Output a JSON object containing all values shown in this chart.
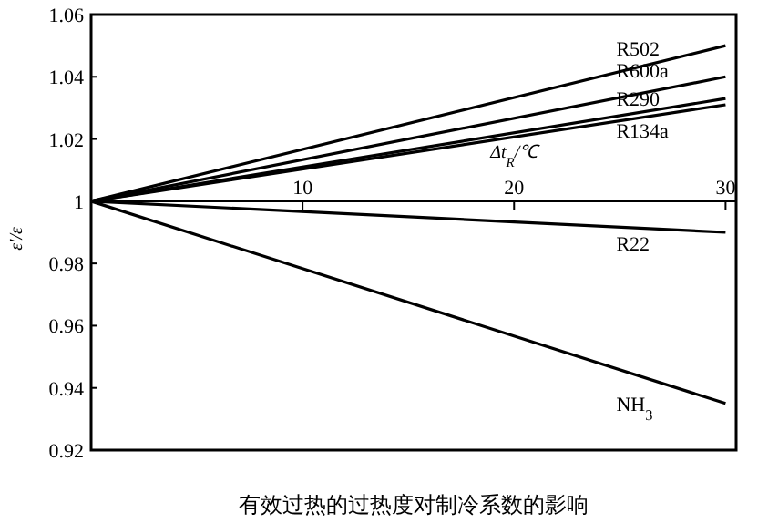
{
  "chart_data": {
    "type": "line",
    "title": "有效过热的过热度对制冷系数的影响",
    "xlabel": "Δt$_{R}$/℃",
    "ylabel": "ε'/ε",
    "x": [
      0,
      30
    ],
    "xlim": [
      0,
      30.5
    ],
    "xticks": [
      10,
      20,
      30
    ],
    "ylim": [
      0.92,
      1.06
    ],
    "yticks": [
      0.92,
      0.94,
      0.96,
      0.98,
      {
        "value": 1,
        "label": "1"
      },
      1.02,
      1.04,
      1.06
    ],
    "legend": false,
    "marker": "none",
    "line_style": "solid",
    "series": [
      {
        "name": "R502",
        "color": "#000000",
        "values": [
          1,
          1.05
        ]
      },
      {
        "name": "R600a",
        "color": "#000000",
        "values": [
          1,
          1.04
        ]
      },
      {
        "name": "R290",
        "color": "#000000",
        "values": [
          1,
          1.033
        ]
      },
      {
        "name": "R134a",
        "color": "#000000",
        "values": [
          1,
          1.031
        ]
      },
      {
        "name": "R22",
        "color": "#000000",
        "values": [
          1,
          0.99
        ]
      },
      {
        "name": "NH$_{3}$",
        "color": "#000000",
        "values": [
          1,
          0.935
        ]
      }
    ]
  }
}
